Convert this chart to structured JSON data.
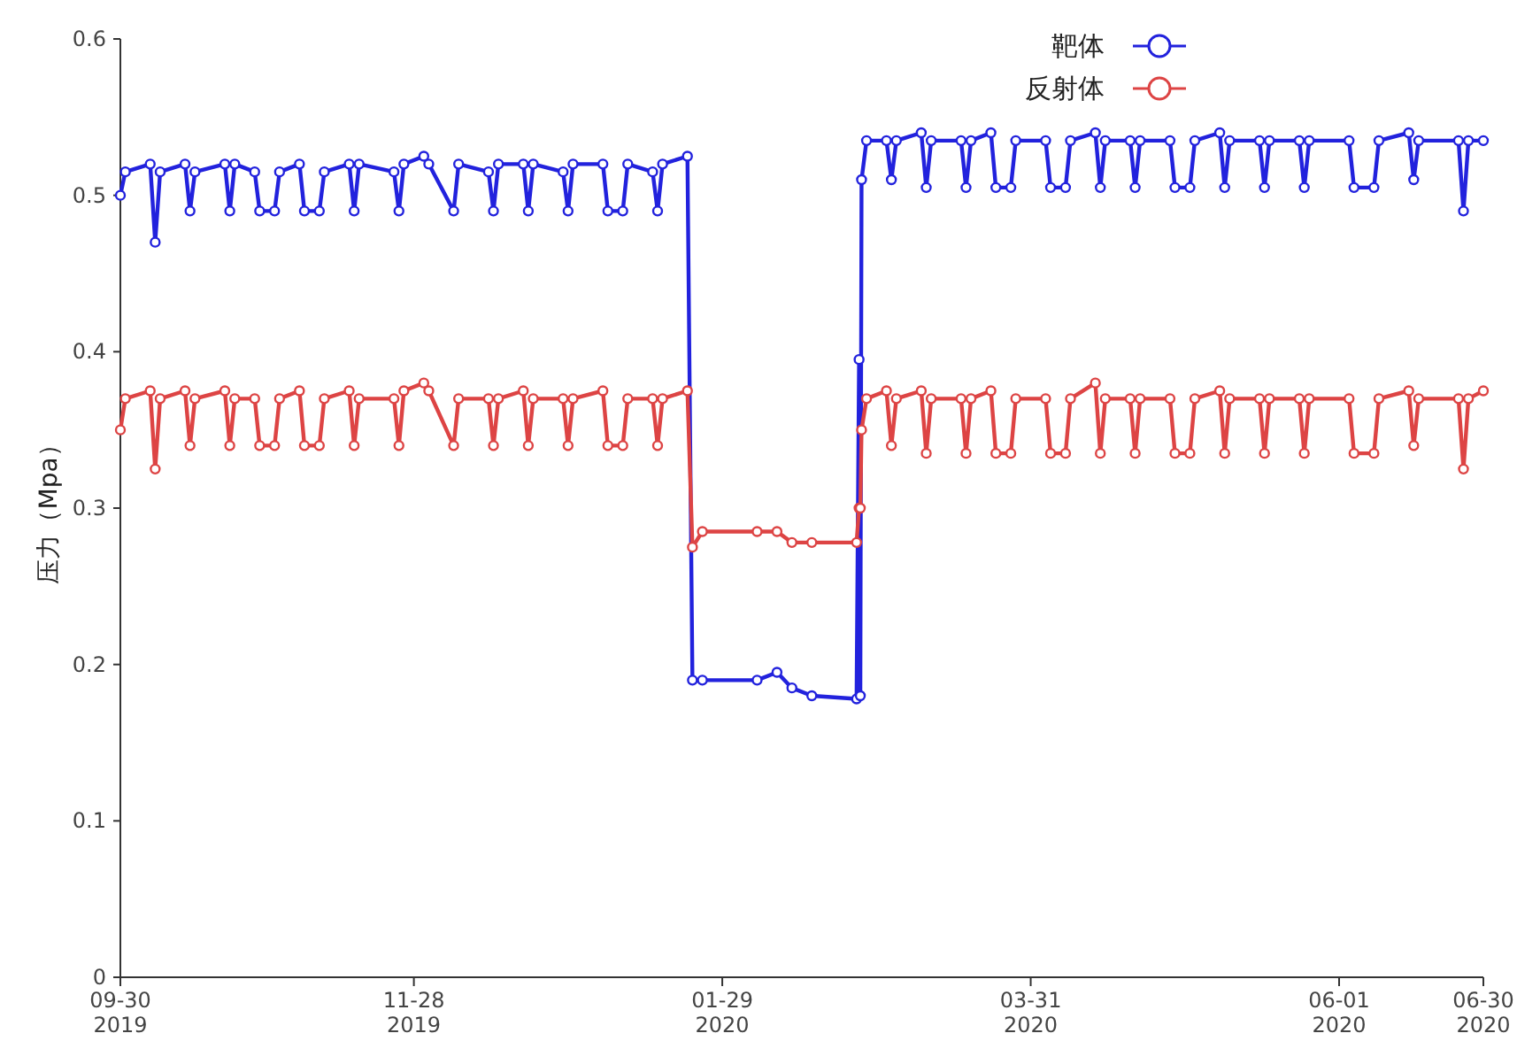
{
  "chart_data": {
    "type": "line",
    "ylabel": "压力（Mpa）",
    "xlim": [
      "2019-09-30",
      "2020-06-30"
    ],
    "ylim": [
      0,
      0.6
    ],
    "xticks": [
      {
        "value": "2019-09-30",
        "label": "09-30\n2019"
      },
      {
        "value": "2019-11-28",
        "label": "11-28\n2019"
      },
      {
        "value": "2020-01-29",
        "label": "01-29\n2020"
      },
      {
        "value": "2020-03-31",
        "label": "03-31\n2020"
      },
      {
        "value": "2020-06-01",
        "label": "06-01\n2020"
      },
      {
        "value": "2020-06-30",
        "label": "06-30\n2020"
      }
    ],
    "yticks": [
      0,
      0.1,
      0.2,
      0.3,
      0.4,
      0.5,
      0.6
    ],
    "grid": false,
    "legend": "top right",
    "marker": "circle",
    "line_style": "solid",
    "x": [
      "2019-09-30",
      "2019-10-01",
      "2019-10-06",
      "2019-10-07",
      "2019-10-08",
      "2019-10-13",
      "2019-10-14",
      "2019-10-15",
      "2019-10-21",
      "2019-10-22",
      "2019-10-23",
      "2019-10-27",
      "2019-10-28",
      "2019-10-31",
      "2019-11-01",
      "2019-11-05",
      "2019-11-06",
      "2019-11-09",
      "2019-11-10",
      "2019-11-15",
      "2019-11-16",
      "2019-11-17",
      "2019-11-24",
      "2019-11-25",
      "2019-11-26",
      "2019-11-30",
      "2019-12-01",
      "2019-12-06",
      "2019-12-07",
      "2019-12-13",
      "2019-12-14",
      "2019-12-15",
      "2019-12-20",
      "2019-12-21",
      "2019-12-22",
      "2019-12-28",
      "2019-12-29",
      "2019-12-30",
      "2020-01-05",
      "2020-01-06",
      "2020-01-09",
      "2020-01-10",
      "2020-01-15",
      "2020-01-16",
      "2020-01-17",
      "2020-01-22",
      "2020-01-23",
      "2020-01-25",
      "2020-02-05",
      "2020-02-09",
      "2020-02-12",
      "2020-02-16",
      "2020-02-25",
      "2020-02-25T12:00",
      "2020-02-25T18:00",
      "2020-02-26",
      "2020-02-27",
      "2020-03-02",
      "2020-03-03",
      "2020-03-04",
      "2020-03-09",
      "2020-03-10",
      "2020-03-11",
      "2020-03-17",
      "2020-03-18",
      "2020-03-19",
      "2020-03-23",
      "2020-03-24",
      "2020-03-27",
      "2020-03-28",
      "2020-04-03",
      "2020-04-04",
      "2020-04-07",
      "2020-04-08",
      "2020-04-13",
      "2020-04-14",
      "2020-04-15",
      "2020-04-20",
      "2020-04-21",
      "2020-04-22",
      "2020-04-28",
      "2020-04-29",
      "2020-05-02",
      "2020-05-03",
      "2020-05-08",
      "2020-05-09",
      "2020-05-10",
      "2020-05-16",
      "2020-05-17",
      "2020-05-18",
      "2020-05-24",
      "2020-05-25",
      "2020-05-26",
      "2020-06-03",
      "2020-06-04",
      "2020-06-08",
      "2020-06-09",
      "2020-06-15",
      "2020-06-16",
      "2020-06-17",
      "2020-06-25",
      "2020-06-26",
      "2020-06-27",
      "2020-06-30"
    ],
    "series": [
      {
        "name": "靶体",
        "color": "#2222dd",
        "values": [
          0.5,
          0.515,
          0.52,
          0.47,
          0.515,
          0.52,
          0.49,
          0.515,
          0.52,
          0.49,
          0.52,
          0.515,
          0.49,
          0.49,
          0.515,
          0.52,
          0.49,
          0.49,
          0.515,
          0.52,
          0.49,
          0.52,
          0.515,
          0.49,
          0.52,
          0.525,
          0.52,
          0.49,
          0.52,
          0.515,
          0.49,
          0.52,
          0.52,
          0.49,
          0.52,
          0.515,
          0.49,
          0.52,
          0.52,
          0.49,
          0.49,
          0.52,
          0.515,
          0.49,
          0.52,
          0.525,
          0.19,
          0.19,
          0.19,
          0.195,
          0.185,
          0.18,
          0.178,
          0.395,
          0.18,
          0.51,
          0.535,
          0.535,
          0.51,
          0.535,
          0.54,
          0.505,
          0.535,
          0.535,
          0.505,
          0.535,
          0.54,
          0.505,
          0.505,
          0.535,
          0.535,
          0.505,
          0.505,
          0.535,
          0.54,
          0.505,
          0.535,
          0.535,
          0.505,
          0.535,
          0.535,
          0.505,
          0.505,
          0.535,
          0.54,
          0.505,
          0.535,
          0.535,
          0.505,
          0.535,
          0.535,
          0.505,
          0.535,
          0.535,
          0.505,
          0.505,
          0.535,
          0.54,
          0.51,
          0.535,
          0.535,
          0.49,
          0.535,
          0.535
        ]
      },
      {
        "name": "反射体",
        "color": "#dd4444",
        "values": [
          0.35,
          0.37,
          0.375,
          0.325,
          0.37,
          0.375,
          0.34,
          0.37,
          0.375,
          0.34,
          0.37,
          0.37,
          0.34,
          0.34,
          0.37,
          0.375,
          0.34,
          0.34,
          0.37,
          0.375,
          0.34,
          0.37,
          0.37,
          0.34,
          0.375,
          0.38,
          0.375,
          0.34,
          0.37,
          0.37,
          0.34,
          0.37,
          0.375,
          0.34,
          0.37,
          0.37,
          0.34,
          0.37,
          0.375,
          0.34,
          0.34,
          0.37,
          0.37,
          0.34,
          0.37,
          0.375,
          0.275,
          0.285,
          0.285,
          0.285,
          0.278,
          0.278,
          0.278,
          0.3,
          0.3,
          0.35,
          0.37,
          0.375,
          0.34,
          0.37,
          0.375,
          0.335,
          0.37,
          0.37,
          0.335,
          0.37,
          0.375,
          0.335,
          0.335,
          0.37,
          0.37,
          0.335,
          0.335,
          0.37,
          0.38,
          0.335,
          0.37,
          0.37,
          0.335,
          0.37,
          0.37,
          0.335,
          0.335,
          0.37,
          0.375,
          0.335,
          0.37,
          0.37,
          0.335,
          0.37,
          0.37,
          0.335,
          0.37,
          0.37,
          0.335,
          0.335,
          0.37,
          0.375,
          0.34,
          0.37,
          0.37,
          0.325,
          0.37,
          0.375
        ]
      }
    ]
  }
}
